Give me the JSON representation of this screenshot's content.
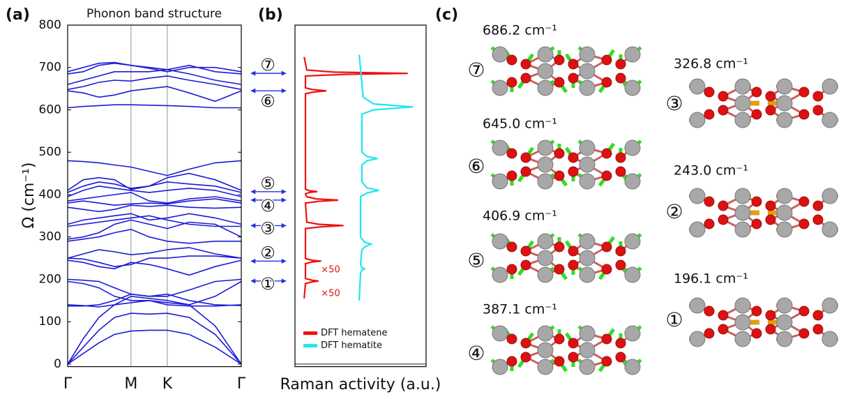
{
  "panel_labels": [
    "(a)",
    "(b)",
    "(c)"
  ],
  "chart_data": [
    {
      "type": "line",
      "title": "Phonon band structure",
      "ylabel": "Ω (cm⁻¹)",
      "color": "#1a1ad8",
      "xlim": [
        0,
        1
      ],
      "ylim": [
        -6,
        800
      ],
      "xticks": [
        {
          "value": 0,
          "label": "Γ"
        },
        {
          "value": 0.365,
          "label": "M"
        },
        {
          "value": 0.574,
          "label": "K"
        },
        {
          "value": 1,
          "label": "Γ"
        }
      ],
      "yticks": [
        0,
        100,
        200,
        300,
        400,
        500,
        600,
        700,
        800
      ],
      "x": [
        0,
        0.09,
        0.18,
        0.27,
        0.365,
        0.47,
        0.574,
        0.7,
        0.85,
        1
      ],
      "series": [
        {
          "values": [
            0,
            25,
            50,
            70,
            78,
            80,
            80,
            70,
            40,
            0
          ]
        },
        {
          "values": [
            0,
            40,
            80,
            110,
            120,
            118,
            120,
            110,
            70,
            0
          ]
        },
        {
          "values": [
            0,
            60,
            110,
            140,
            160,
            155,
            150,
            140,
            90,
            0
          ]
        },
        {
          "values": [
            137,
            137,
            140,
            150,
            165,
            160,
            165,
            150,
            140,
            138
          ]
        },
        {
          "values": [
            140,
            138,
            135,
            140,
            145,
            150,
            140,
            137,
            137,
            140
          ]
        },
        {
          "values": [
            195,
            190,
            180,
            160,
            150,
            150,
            145,
            140,
            160,
            195
          ]
        },
        {
          "values": [
            200,
            198,
            195,
            180,
            165,
            160,
            160,
            175,
            195,
            200
          ]
        },
        {
          "values": [
            245,
            240,
            230,
            225,
            240,
            235,
            225,
            210,
            230,
            245
          ]
        },
        {
          "values": [
            250,
            248,
            240,
            230,
            235,
            250,
            250,
            255,
            255,
            250
          ]
        },
        {
          "values": [
            250,
            260,
            270,
            265,
            258,
            262,
            270,
            275,
            260,
            250
          ]
        },
        {
          "values": [
            290,
            295,
            300,
            310,
            318,
            300,
            290,
            285,
            290,
            290
          ]
        },
        {
          "values": [
            295,
            300,
            310,
            330,
            340,
            330,
            320,
            335,
            330,
            300
          ]
        },
        {
          "values": [
            325,
            330,
            335,
            340,
            345,
            350,
            340,
            330,
            325,
            325
          ]
        },
        {
          "values": [
            330,
            340,
            345,
            350,
            355,
            340,
            345,
            355,
            345,
            330
          ]
        },
        {
          "values": [
            370,
            365,
            360,
            365,
            375,
            372,
            375,
            370,
            368,
            370
          ]
        },
        {
          "values": [
            380,
            385,
            380,
            375,
            378,
            380,
            378,
            385,
            390,
            380
          ]
        },
        {
          "values": [
            385,
            390,
            395,
            400,
            405,
            385,
            380,
            390,
            395,
            385
          ]
        },
        {
          "values": [
            395,
            410,
            420,
            415,
            410,
            405,
            410,
            415,
            410,
            395
          ]
        },
        {
          "values": [
            405,
            420,
            430,
            425,
            415,
            420,
            430,
            425,
            420,
            405
          ]
        },
        {
          "values": [
            410,
            435,
            440,
            435,
            412,
            420,
            440,
            450,
            435,
            410
          ]
        },
        {
          "values": [
            480,
            478,
            475,
            470,
            465,
            455,
            445,
            460,
            475,
            480
          ]
        },
        {
          "values": [
            605,
            608,
            610,
            612,
            612,
            611,
            610,
            608,
            605,
            605
          ]
        },
        {
          "values": [
            645,
            640,
            630,
            635,
            645,
            650,
            655,
            640,
            620,
            645
          ]
        },
        {
          "values": [
            648,
            655,
            665,
            670,
            668,
            675,
            680,
            670,
            660,
            648
          ]
        },
        {
          "values": [
            660,
            670,
            680,
            690,
            690,
            690,
            695,
            685,
            670,
            660
          ]
        },
        {
          "values": [
            685,
            690,
            705,
            710,
            705,
            700,
            695,
            705,
            690,
            685
          ]
        },
        {
          "values": [
            690,
            700,
            710,
            712,
            705,
            698,
            690,
            700,
            700,
            690
          ]
        }
      ]
    },
    {
      "type": "spectrum",
      "xlabel": "Raman activity (a.u.)",
      "xlim": [
        0,
        100
      ],
      "ylim": [
        -6,
        800
      ],
      "legend": "lower left",
      "annotations": [
        "×50",
        "×50"
      ],
      "markers": [
        {
          "label": "⑦",
          "value": 686.2
        },
        {
          "label": "⑥",
          "value": 645.0
        },
        {
          "label": "⑤",
          "value": 406.9
        },
        {
          "label": "④",
          "value": 387.1
        },
        {
          "label": "③",
          "value": 326.8
        },
        {
          "label": "②",
          "value": 243.0
        },
        {
          "label": "①",
          "value": 196.1
        }
      ],
      "series": [
        {
          "name": "DFT hematene",
          "color": "#ee1111",
          "x": [
            155,
            190,
            194,
            196,
            198,
            202,
            237,
            241,
            243,
            245,
            249,
            320,
            324,
            327,
            330,
            335,
            380,
            384,
            387,
            390,
            395,
            402,
            405,
            407,
            409,
            413,
            638,
            642,
            645,
            648,
            652,
            680,
            684,
            686,
            689,
            694,
            725
          ],
          "values": [
            7,
            8,
            13,
            18,
            13,
            8,
            8,
            13,
            20,
            13,
            8,
            8,
            20,
            37,
            18,
            9,
            8,
            18,
            33,
            16,
            9,
            8,
            11,
            17,
            11,
            8,
            8,
            14,
            24,
            13,
            8,
            8,
            40,
            86,
            30,
            9,
            7
          ]
        },
        {
          "name": "DFT hematite",
          "color": "#22e4f0",
          "x": [
            150,
            215,
            222,
            225,
            228,
            235,
            270,
            278,
            283,
            288,
            300,
            395,
            404,
            410,
            416,
            430,
            470,
            480,
            485,
            490,
            500,
            590,
            600,
            607,
            614,
            630,
            730
          ],
          "values": [
            49,
            50,
            51,
            53,
            51,
            50,
            51,
            54,
            58,
            53,
            50,
            50,
            55,
            64,
            55,
            51,
            51,
            55,
            63,
            55,
            51,
            51,
            60,
            90,
            60,
            52,
            49
          ]
        }
      ]
    }
  ],
  "modes": [
    {
      "number": "⑦",
      "frequency": "686.2 cm⁻¹"
    },
    {
      "number": "⑥",
      "frequency": "645.0 cm⁻¹"
    },
    {
      "number": "⑤",
      "frequency": "406.9 cm⁻¹"
    },
    {
      "number": "④",
      "frequency": "387.1 cm⁻¹"
    },
    {
      "number": "③",
      "frequency": "326.8 cm⁻¹"
    },
    {
      "number": "②",
      "frequency": "243.0 cm⁻¹"
    },
    {
      "number": "①",
      "frequency": "196.1 cm⁻¹"
    }
  ]
}
